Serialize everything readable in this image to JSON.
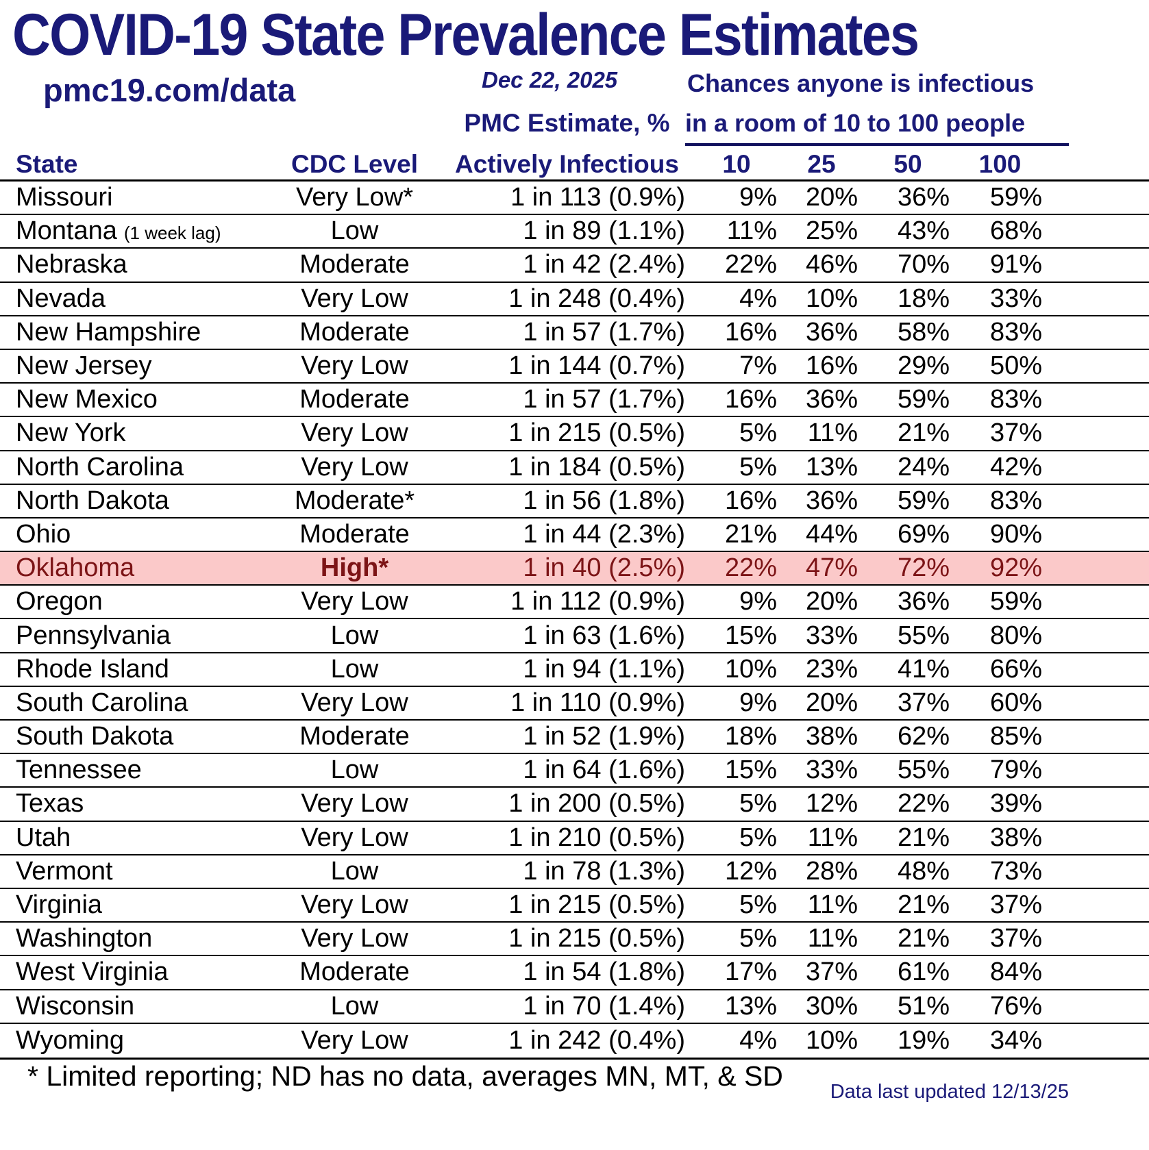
{
  "page": {
    "title": "COVID-19 State Prevalence Estimates",
    "site_link": "pmc19.com/data",
    "date_label": "Dec 22, 2025",
    "chances_line1": "Chances anyone is infectious",
    "chances_line2": "in a room of 10 to 100 people",
    "pmc_col_line1": "PMC Estimate, %",
    "pmc_col_line2": "Actively Infectious",
    "state_col": "State",
    "cdc_col": "CDC Level",
    "room_cols": [
      "10",
      "25",
      "50",
      "100"
    ],
    "footnote": "* Limited reporting; ND has no data, averages MN, MT, & SD",
    "updated_label": "Data last updated 12/13/25",
    "colors": {
      "navy": "#1a1a78",
      "highlight_bg": "#fbc9c9",
      "highlight_text": "#7c1416"
    }
  },
  "chart_data": {
    "type": "table",
    "title": "COVID-19 State Prevalence Estimates",
    "date": "Dec 22, 2025",
    "group_header": "Chances anyone is infectious in a room of 10 to 100 people",
    "columns": [
      "State",
      "CDC Level",
      "PMC Estimate, % Actively Infectious",
      "10",
      "25",
      "50",
      "100"
    ],
    "highlighted_state": "Oklahoma",
    "footnote": "* Limited reporting; ND has no data, averages MN, MT, & SD",
    "updated": "Data last updated 12/13/25",
    "rows": [
      {
        "state": "Missouri",
        "note": "",
        "cdc": "Very Low*",
        "pmc": "1 in 113 (0.9%)",
        "p10": "9%",
        "p25": "20%",
        "p50": "36%",
        "p100": "59%",
        "highlight": false
      },
      {
        "state": "Montana",
        "note": "(1 week lag)",
        "cdc": "Low",
        "pmc": "1 in 89 (1.1%)",
        "p10": "11%",
        "p25": "25%",
        "p50": "43%",
        "p100": "68%",
        "highlight": false
      },
      {
        "state": "Nebraska",
        "note": "",
        "cdc": "Moderate",
        "pmc": "1 in 42 (2.4%)",
        "p10": "22%",
        "p25": "46%",
        "p50": "70%",
        "p100": "91%",
        "highlight": false
      },
      {
        "state": "Nevada",
        "note": "",
        "cdc": "Very Low",
        "pmc": "1 in 248 (0.4%)",
        "p10": "4%",
        "p25": "10%",
        "p50": "18%",
        "p100": "33%",
        "highlight": false
      },
      {
        "state": "New Hampshire",
        "note": "",
        "cdc": "Moderate",
        "pmc": "1 in 57 (1.7%)",
        "p10": "16%",
        "p25": "36%",
        "p50": "58%",
        "p100": "83%",
        "highlight": false
      },
      {
        "state": "New Jersey",
        "note": "",
        "cdc": "Very Low",
        "pmc": "1 in 144 (0.7%)",
        "p10": "7%",
        "p25": "16%",
        "p50": "29%",
        "p100": "50%",
        "highlight": false
      },
      {
        "state": "New Mexico",
        "note": "",
        "cdc": "Moderate",
        "pmc": "1 in 57 (1.7%)",
        "p10": "16%",
        "p25": "36%",
        "p50": "59%",
        "p100": "83%",
        "highlight": false
      },
      {
        "state": "New York",
        "note": "",
        "cdc": "Very Low",
        "pmc": "1 in 215 (0.5%)",
        "p10": "5%",
        "p25": "11%",
        "p50": "21%",
        "p100": "37%",
        "highlight": false
      },
      {
        "state": "North Carolina",
        "note": "",
        "cdc": "Very Low",
        "pmc": "1 in 184 (0.5%)",
        "p10": "5%",
        "p25": "13%",
        "p50": "24%",
        "p100": "42%",
        "highlight": false
      },
      {
        "state": "North Dakota",
        "note": "",
        "cdc": "Moderate*",
        "pmc": "1 in 56 (1.8%)",
        "p10": "16%",
        "p25": "36%",
        "p50": "59%",
        "p100": "83%",
        "highlight": false
      },
      {
        "state": "Ohio",
        "note": "",
        "cdc": "Moderate",
        "pmc": "1 in 44 (2.3%)",
        "p10": "21%",
        "p25": "44%",
        "p50": "69%",
        "p100": "90%",
        "highlight": false
      },
      {
        "state": "Oklahoma",
        "note": "",
        "cdc": "High*",
        "pmc": "1 in 40 (2.5%)",
        "p10": "22%",
        "p25": "47%",
        "p50": "72%",
        "p100": "92%",
        "highlight": true
      },
      {
        "state": "Oregon",
        "note": "",
        "cdc": "Very Low",
        "pmc": "1 in 112 (0.9%)",
        "p10": "9%",
        "p25": "20%",
        "p50": "36%",
        "p100": "59%",
        "highlight": false
      },
      {
        "state": "Pennsylvania",
        "note": "",
        "cdc": "Low",
        "pmc": "1 in 63 (1.6%)",
        "p10": "15%",
        "p25": "33%",
        "p50": "55%",
        "p100": "80%",
        "highlight": false
      },
      {
        "state": "Rhode Island",
        "note": "",
        "cdc": "Low",
        "pmc": "1 in 94 (1.1%)",
        "p10": "10%",
        "p25": "23%",
        "p50": "41%",
        "p100": "66%",
        "highlight": false
      },
      {
        "state": "South Carolina",
        "note": "",
        "cdc": "Very Low",
        "pmc": "1 in 110 (0.9%)",
        "p10": "9%",
        "p25": "20%",
        "p50": "37%",
        "p100": "60%",
        "highlight": false
      },
      {
        "state": "South Dakota",
        "note": "",
        "cdc": "Moderate",
        "pmc": "1 in 52 (1.9%)",
        "p10": "18%",
        "p25": "38%",
        "p50": "62%",
        "p100": "85%",
        "highlight": false
      },
      {
        "state": "Tennessee",
        "note": "",
        "cdc": "Low",
        "pmc": "1 in 64 (1.6%)",
        "p10": "15%",
        "p25": "33%",
        "p50": "55%",
        "p100": "79%",
        "highlight": false
      },
      {
        "state": "Texas",
        "note": "",
        "cdc": "Very Low",
        "pmc": "1 in 200 (0.5%)",
        "p10": "5%",
        "p25": "12%",
        "p50": "22%",
        "p100": "39%",
        "highlight": false
      },
      {
        "state": "Utah",
        "note": "",
        "cdc": "Very Low",
        "pmc": "1 in 210 (0.5%)",
        "p10": "5%",
        "p25": "11%",
        "p50": "21%",
        "p100": "38%",
        "highlight": false
      },
      {
        "state": "Vermont",
        "note": "",
        "cdc": "Low",
        "pmc": "1 in 78 (1.3%)",
        "p10": "12%",
        "p25": "28%",
        "p50": "48%",
        "p100": "73%",
        "highlight": false
      },
      {
        "state": "Virginia",
        "note": "",
        "cdc": "Very Low",
        "pmc": "1 in 215 (0.5%)",
        "p10": "5%",
        "p25": "11%",
        "p50": "21%",
        "p100": "37%",
        "highlight": false
      },
      {
        "state": "Washington",
        "note": "",
        "cdc": "Very Low",
        "pmc": "1 in 215 (0.5%)",
        "p10": "5%",
        "p25": "11%",
        "p50": "21%",
        "p100": "37%",
        "highlight": false
      },
      {
        "state": "West Virginia",
        "note": "",
        "cdc": "Moderate",
        "pmc": "1 in 54 (1.8%)",
        "p10": "17%",
        "p25": "37%",
        "p50": "61%",
        "p100": "84%",
        "highlight": false
      },
      {
        "state": "Wisconsin",
        "note": "",
        "cdc": "Low",
        "pmc": "1 in 70 (1.4%)",
        "p10": "13%",
        "p25": "30%",
        "p50": "51%",
        "p100": "76%",
        "highlight": false
      },
      {
        "state": "Wyoming",
        "note": "",
        "cdc": "Very Low",
        "pmc": "1 in 242 (0.4%)",
        "p10": "4%",
        "p25": "10%",
        "p50": "19%",
        "p100": "34%",
        "highlight": false
      }
    ]
  }
}
